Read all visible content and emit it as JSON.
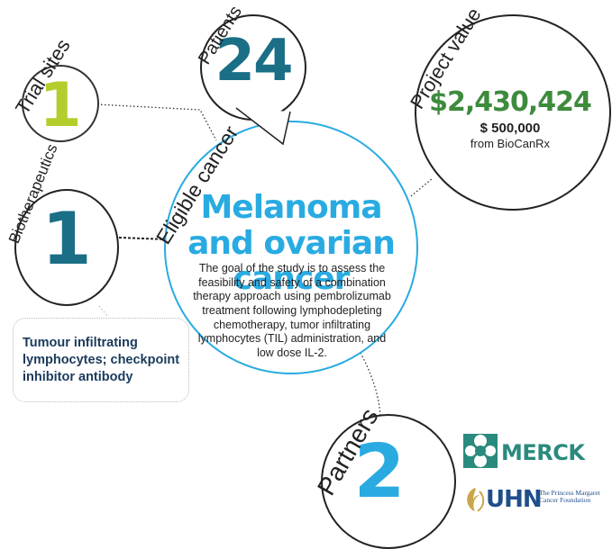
{
  "trial_sites": {
    "label": "Trial sites",
    "value": "1"
  },
  "patients": {
    "label": "Patients",
    "value": "24"
  },
  "project_value": {
    "label": "Project value",
    "amount": "$2,430,424",
    "contribution": "$ 500,000",
    "source": "from BioCanRx"
  },
  "biotherapeutics": {
    "label": "Biotherapeutics",
    "value": "1",
    "description": "Tumour infiltrating lymphocytes; checkpoint inhibitor antibody"
  },
  "eligible_cancer": {
    "label": "Eligible cancer",
    "title": "Melanoma and ovarian cancer",
    "description": "The goal of the study is to assess the feasibility and safety of a combination therapy approach using pembrolizumab treatment following lymphodepleting chemotherapy, tumor infiltrating lymphocytes (TIL) administration, and low dose IL-2."
  },
  "partners": {
    "label": "Partners",
    "value": "2",
    "logos": [
      "MERCK",
      "UHN"
    ],
    "uhn_foundation": "The Princess Margaret Cancer Foundation"
  },
  "colors": {
    "lime": "#b5cd2c",
    "teal": "#1a6e86",
    "blue": "#29abe2",
    "green": "#3d8b3d",
    "merck": "#2a8a7e",
    "uhn": "#1f4e8c"
  }
}
